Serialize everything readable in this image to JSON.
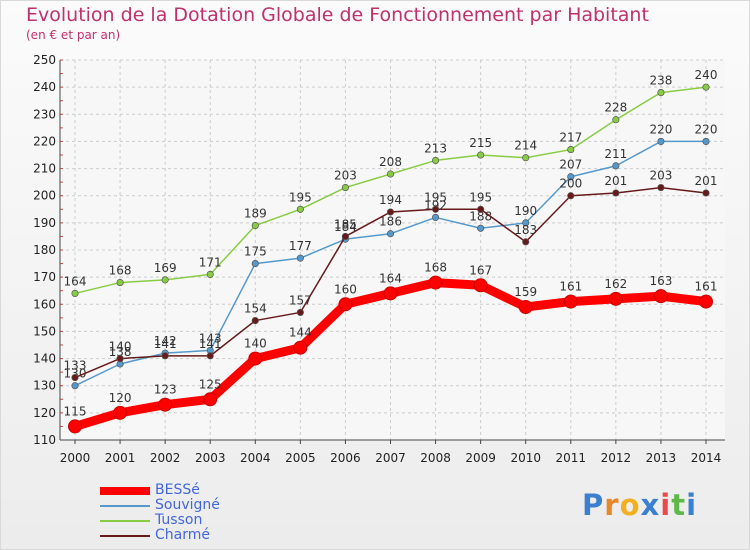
{
  "chart_data": {
    "type": "line",
    "title": "Evolution de la Dotation Globale de Fonctionnement par Habitant",
    "subtitle": "(en € et par an)",
    "x": [
      "2000",
      "2001",
      "2002",
      "2003",
      "2004",
      "2005",
      "2006",
      "2007",
      "2008",
      "2009",
      "2010",
      "2011",
      "2012",
      "2013",
      "2014"
    ],
    "ylim": [
      110,
      250
    ],
    "yticks": [
      110,
      120,
      130,
      140,
      150,
      160,
      170,
      180,
      190,
      200,
      210,
      220,
      230,
      240,
      250
    ],
    "grid": true,
    "legend_position": "bottom-left",
    "series": [
      {
        "name": "BESSé",
        "color": "#ff0000",
        "values": [
          115,
          120,
          123,
          125,
          140,
          144,
          160,
          164,
          168,
          167,
          159,
          161,
          162,
          163,
          161
        ]
      },
      {
        "name": "Souvigné",
        "color": "#5599cc",
        "values": [
          130,
          138,
          142,
          143,
          175,
          177,
          184,
          186,
          192,
          188,
          190,
          207,
          211,
          220,
          220
        ]
      },
      {
        "name": "Tusson",
        "color": "#88cc44",
        "values": [
          164,
          168,
          169,
          171,
          189,
          195,
          203,
          208,
          213,
          215,
          214,
          217,
          228,
          238,
          240
        ]
      },
      {
        "name": "Charmé",
        "color": "#661a1a",
        "values": [
          133,
          140,
          141,
          141,
          154,
          157,
          185,
          194,
          195,
          195,
          183,
          200,
          201,
          203,
          201
        ]
      }
    ]
  },
  "brand": {
    "letters": [
      "P",
      "r",
      "o",
      "x",
      "i",
      "t",
      "i"
    ],
    "colors": [
      "#3a7fd0",
      "#e8862a",
      "#f0b020",
      "#3a7fd0",
      "#e84a4a",
      "#60b84a",
      "#3a7fd0"
    ]
  }
}
